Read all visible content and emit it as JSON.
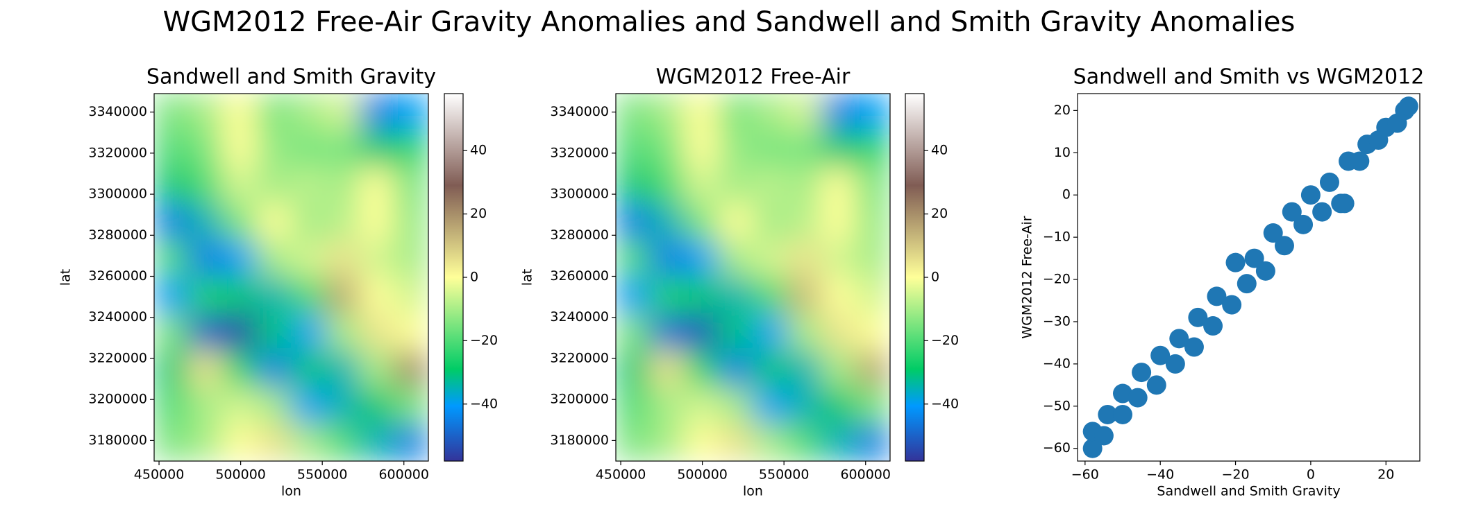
{
  "title": "WGM2012 Free-Air Gravity Anomalies and Sandwell and Smith Gravity Anomalies",
  "chart_data": [
    {
      "type": "heatmap",
      "title": "Sandwell and Smith Gravity",
      "x_label": "lon",
      "y_label": "lat",
      "colormap": "terrain",
      "xlim": [
        447000,
        615000
      ],
      "ylim": [
        3170000,
        3349000
      ],
      "xticks": [
        450000,
        500000,
        550000,
        600000
      ],
      "yticks": [
        3180000,
        3200000,
        3220000,
        3240000,
        3260000,
        3280000,
        3300000,
        3320000,
        3340000
      ],
      "clim": [
        -58,
        58
      ],
      "cticks": [
        {
          "value": -40,
          "label": "−40"
        },
        {
          "value": -20,
          "label": "−20"
        },
        0,
        20,
        40
      ],
      "z": [
        [
          -15,
          -10,
          0,
          -15,
          -10,
          -5,
          -45,
          -40
        ],
        [
          -20,
          -15,
          0,
          -12,
          -15,
          -15,
          -30,
          -25
        ],
        [
          -30,
          -20,
          -5,
          -10,
          -8,
          -10,
          0,
          -15
        ],
        [
          -45,
          -35,
          -15,
          0,
          -10,
          -8,
          0,
          -12
        ],
        [
          -20,
          -45,
          -40,
          -10,
          -5,
          5,
          -5,
          -10
        ],
        [
          -40,
          -25,
          -30,
          -35,
          -20,
          15,
          0,
          -5
        ],
        [
          -15,
          -50,
          -55,
          -30,
          -40,
          -10,
          5,
          0
        ],
        [
          -30,
          5,
          -25,
          -45,
          -30,
          -35,
          -10,
          20
        ],
        [
          -20,
          -10,
          -5,
          -10,
          -40,
          -35,
          -30,
          -15
        ],
        [
          -15,
          -10,
          0,
          5,
          -10,
          -20,
          -35,
          -45
        ]
      ]
    },
    {
      "type": "heatmap",
      "title": "WGM2012 Free-Air",
      "x_label": "lon",
      "y_label": "lat",
      "colormap": "terrain",
      "xlim": [
        447000,
        615000
      ],
      "ylim": [
        3170000,
        3349000
      ],
      "xticks": [
        450000,
        500000,
        550000,
        600000
      ],
      "yticks": [
        3180000,
        3200000,
        3220000,
        3240000,
        3260000,
        3280000,
        3300000,
        3320000,
        3340000
      ],
      "clim": [
        -58,
        58
      ],
      "cticks": [
        {
          "value": -40,
          "label": "−40"
        },
        {
          "value": -20,
          "label": "−20"
        },
        0,
        20,
        40
      ],
      "z": [
        [
          -15,
          -10,
          0,
          -15,
          -10,
          -5,
          -45,
          -40
        ],
        [
          -20,
          -15,
          0,
          -12,
          -15,
          -15,
          -30,
          -25
        ],
        [
          -30,
          -20,
          -5,
          -10,
          -8,
          -10,
          0,
          -15
        ],
        [
          -45,
          -35,
          -15,
          0,
          -10,
          -8,
          0,
          -12
        ],
        [
          -20,
          -45,
          -40,
          -10,
          -5,
          5,
          -5,
          -10
        ],
        [
          -40,
          -25,
          -30,
          -35,
          -20,
          12,
          0,
          -5
        ],
        [
          -15,
          -48,
          -52,
          -30,
          -40,
          -10,
          5,
          0
        ],
        [
          -30,
          5,
          -25,
          -45,
          -30,
          -35,
          -10,
          15
        ],
        [
          -20,
          -10,
          -5,
          -10,
          -40,
          -35,
          -30,
          -15
        ],
        [
          -15,
          -10,
          0,
          5,
          -10,
          -20,
          -35,
          -45
        ]
      ]
    },
    {
      "type": "scatter",
      "title": "Sandwell and Smith vs WGM2012",
      "x_label": "Sandwell and Smith Gravity",
      "y_label": "WGM2012 Free-Air",
      "color": "#1f77b4",
      "xlim": [
        -62,
        29
      ],
      "ylim": [
        -63,
        24
      ],
      "xticks": [
        {
          "value": -60,
          "label": "−60"
        },
        {
          "value": -40,
          "label": "−40"
        },
        {
          "value": -20,
          "label": "−20"
        },
        0,
        20
      ],
      "yticks": [
        {
          "value": -60,
          "label": "−60"
        },
        {
          "value": -50,
          "label": "−50"
        },
        {
          "value": -40,
          "label": "−40"
        },
        {
          "value": -30,
          "label": "−30"
        },
        {
          "value": -20,
          "label": "−20"
        },
        {
          "value": -10,
          "label": "−10"
        },
        0,
        10,
        20
      ],
      "x": [
        -58,
        -58,
        -55,
        -54,
        -50,
        -50,
        -46,
        -45,
        -41,
        -40,
        -36,
        -35,
        -31,
        -30,
        -26,
        -25,
        -21,
        -20,
        -17,
        -15,
        -12,
        -10,
        -7,
        -5,
        -2,
        0,
        3,
        5,
        8,
        9,
        10,
        13,
        15,
        18,
        20,
        23,
        25,
        26
      ],
      "y": [
        -60,
        -56,
        -57,
        -52,
        -52,
        -47,
        -48,
        -42,
        -45,
        -38,
        -40,
        -34,
        -36,
        -29,
        -31,
        -24,
        -26,
        -16,
        -21,
        -15,
        -18,
        -9,
        -12,
        -4,
        -7,
        0,
        -4,
        3,
        -2,
        -2,
        8,
        8,
        12,
        13,
        16,
        17,
        20,
        21
      ]
    }
  ]
}
